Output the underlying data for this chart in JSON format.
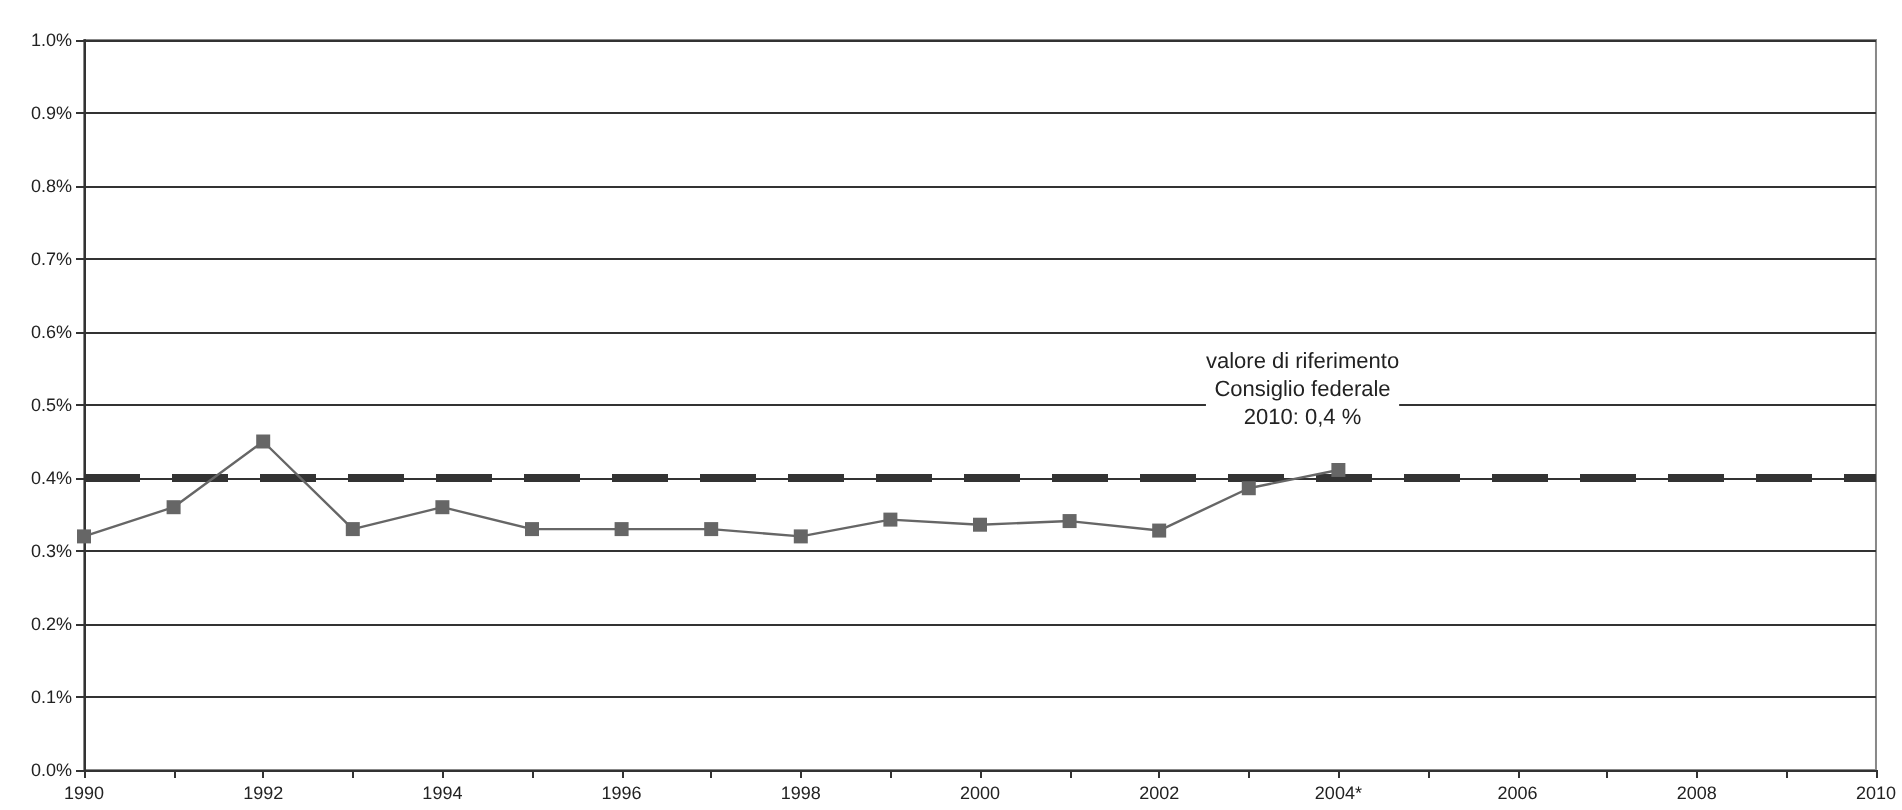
{
  "chart_data": {
    "type": "line",
    "categories": [
      "1990",
      null,
      "1992",
      null,
      "1994",
      null,
      "1996",
      null,
      "1998",
      null,
      "2000",
      null,
      "2002",
      null,
      "2004*",
      null,
      "2006",
      null,
      "2008",
      null,
      "2010"
    ],
    "values": [
      0.32,
      0.36,
      0.45,
      0.33,
      0.36,
      0.33,
      0.33,
      0.33,
      0.32,
      0.343,
      0.336,
      0.341,
      0.328,
      0.386,
      0.411,
      null,
      null,
      null,
      null,
      null,
      null
    ],
    "color": "#666666",
    "marker": "square",
    "ylim": [
      0,
      1.0
    ],
    "yticks": [
      {
        "value": 0,
        "label": "0.0%"
      },
      {
        "value": 0.1,
        "label": "0.1%"
      },
      {
        "value": 0.2,
        "label": "0.2%"
      },
      {
        "value": 0.3,
        "label": "0.3%"
      },
      {
        "value": 0.4,
        "label": "0.4%"
      },
      {
        "value": 0.5,
        "label": "0.5%"
      },
      {
        "value": 0.6,
        "label": "0.6%"
      },
      {
        "value": 0.7,
        "label": "0.7%"
      },
      {
        "value": 0.8,
        "label": "0.8%"
      },
      {
        "value": 0.9,
        "label": "0.9%"
      },
      {
        "value": 1.0,
        "label": "1.0%"
      }
    ],
    "grid": "y",
    "ref_lines": [
      {
        "axis": "y",
        "value": 0.4,
        "label": "valore di riferimento\nConsiglio federale\n2010: 0,4 %",
        "color": "#333333",
        "line_style": "dashed"
      }
    ]
  }
}
